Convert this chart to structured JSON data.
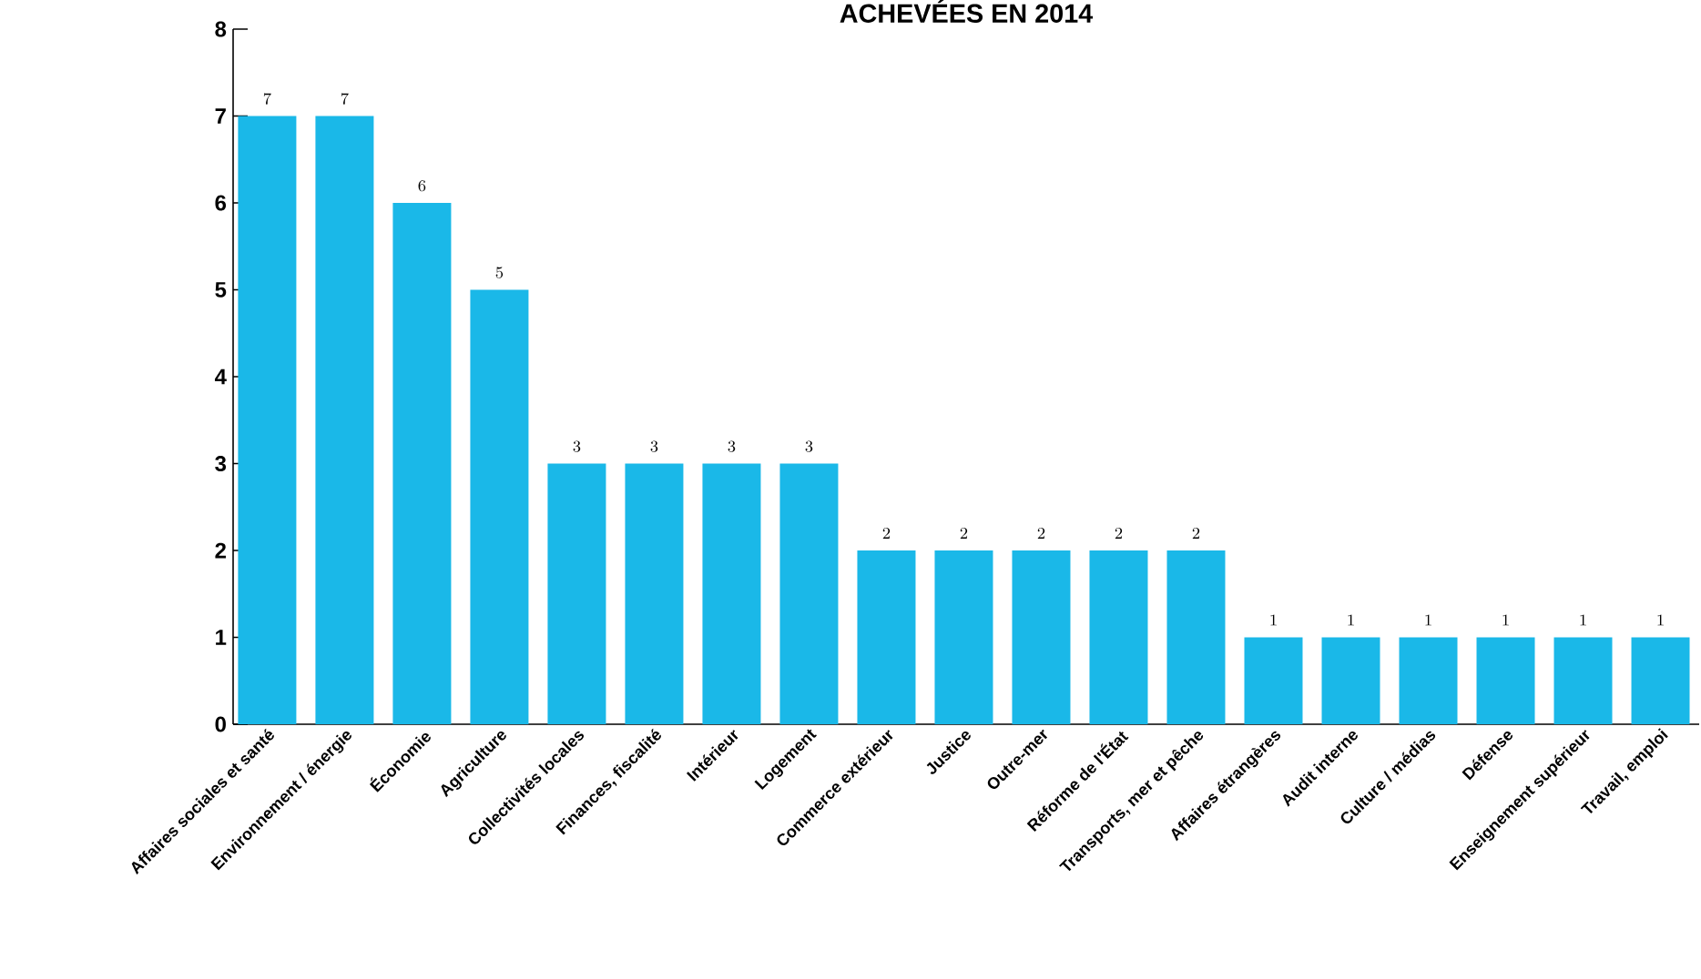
{
  "chart_data": {
    "type": "bar",
    "title": "ACHEVÉES EN 2014",
    "categories": [
      "Affaires sociales et santé",
      "Environnement / énergie",
      "Économie",
      "Agriculture",
      "Collectivités locales",
      "Finances, fiscalité",
      "Intérieur",
      "Logement",
      "Commerce extérieur",
      "Justice",
      "Outre-mer",
      "Réforme de l'État",
      "Transports, mer et pêche",
      "Affaires étrangères",
      "Audit interne",
      "Culture / médias",
      "Défense",
      "Enseignement supérieur",
      "Travail, emploi"
    ],
    "values": [
      7,
      7,
      6,
      5,
      3,
      3,
      3,
      3,
      2,
      2,
      2,
      2,
      2,
      1,
      1,
      1,
      1,
      1,
      1
    ],
    "color": "#1ab8e8",
    "ylim": [
      0,
      8
    ],
    "yticks": [
      0,
      1,
      2,
      3,
      4,
      5,
      6,
      7,
      8
    ],
    "data_labels": true
  }
}
